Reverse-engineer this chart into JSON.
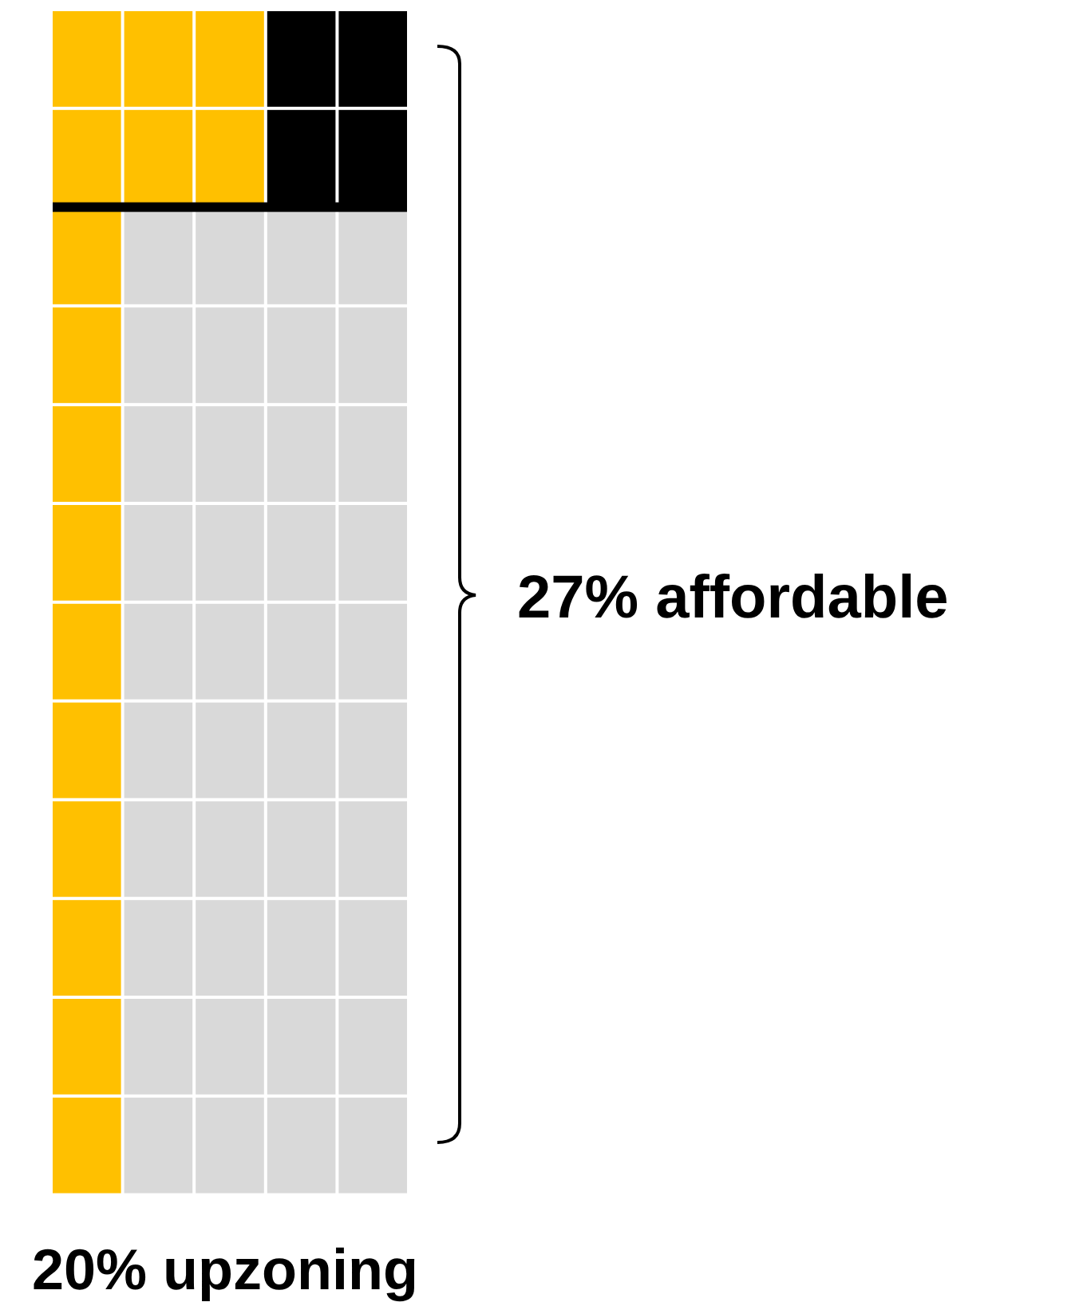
{
  "chart_data": {
    "type": "other",
    "categories": [
      null,
      null
    ],
    "values": [
      27,
      20
    ],
    "value_labels": [
      "27% affordable",
      "20% upzoning"
    ]
  }
}
